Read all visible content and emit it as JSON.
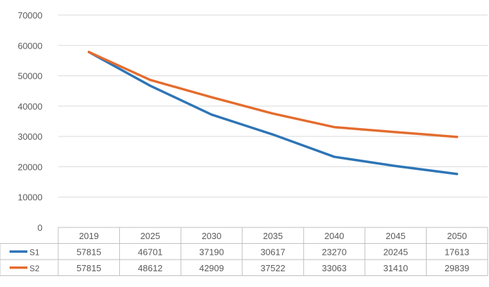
{
  "chart_data": {
    "type": "line",
    "categories": [
      "2019",
      "2025",
      "2030",
      "2035",
      "2040",
      "2045",
      "2050"
    ],
    "ylim": [
      0,
      70000
    ],
    "yticks": [
      "0",
      "10000",
      "20000",
      "30000",
      "40000",
      "50000",
      "60000",
      "70000"
    ],
    "grid": true,
    "legend": "data-table",
    "series": [
      {
        "name": "S1",
        "color": "#2E75B6",
        "values": [
          57815,
          46701,
          37190,
          30617,
          23270,
          20245,
          17613
        ]
      },
      {
        "name": "S2",
        "color": "#E46C2E",
        "values": [
          57815,
          48612,
          42909,
          37522,
          33063,
          31410,
          29839
        ]
      }
    ]
  }
}
